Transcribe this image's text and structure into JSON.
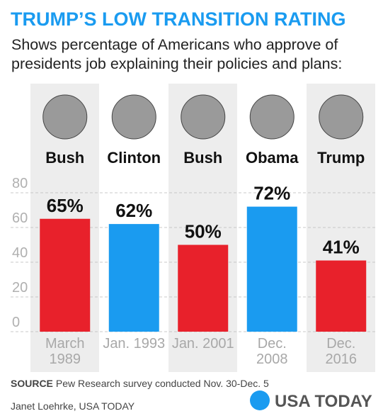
{
  "chart_data": {
    "type": "bar",
    "title": "TRUMP’S LOW TRANSITION RATING",
    "subtitle": "Shows percentage of Americans who approve of presidents job explaining their policies and plans:",
    "presidents": [
      "Bush",
      "Clinton",
      "Bush",
      "Obama",
      "Trump"
    ],
    "categories": [
      "March 1989",
      "Jan. 1993",
      "Jan. 2001",
      "Dec. 2008",
      "Dec. 2016"
    ],
    "values": [
      65,
      62,
      50,
      72,
      41
    ],
    "value_labels": [
      "65%",
      "62%",
      "50%",
      "72%",
      "41%"
    ],
    "colors": [
      "#e8212b",
      "#1a9bf0",
      "#e8212b",
      "#1a9bf0",
      "#e8212b"
    ],
    "ylim": [
      0,
      80
    ],
    "yticks": [
      0,
      20,
      40,
      60,
      80
    ],
    "grid": true,
    "source_label": "SOURCE",
    "source_text": "Pew Research survey conducted Nov. 30-Dec. 5",
    "credit": "Janet Loehrke, USA TODAY",
    "logo": "USA TODAY"
  }
}
